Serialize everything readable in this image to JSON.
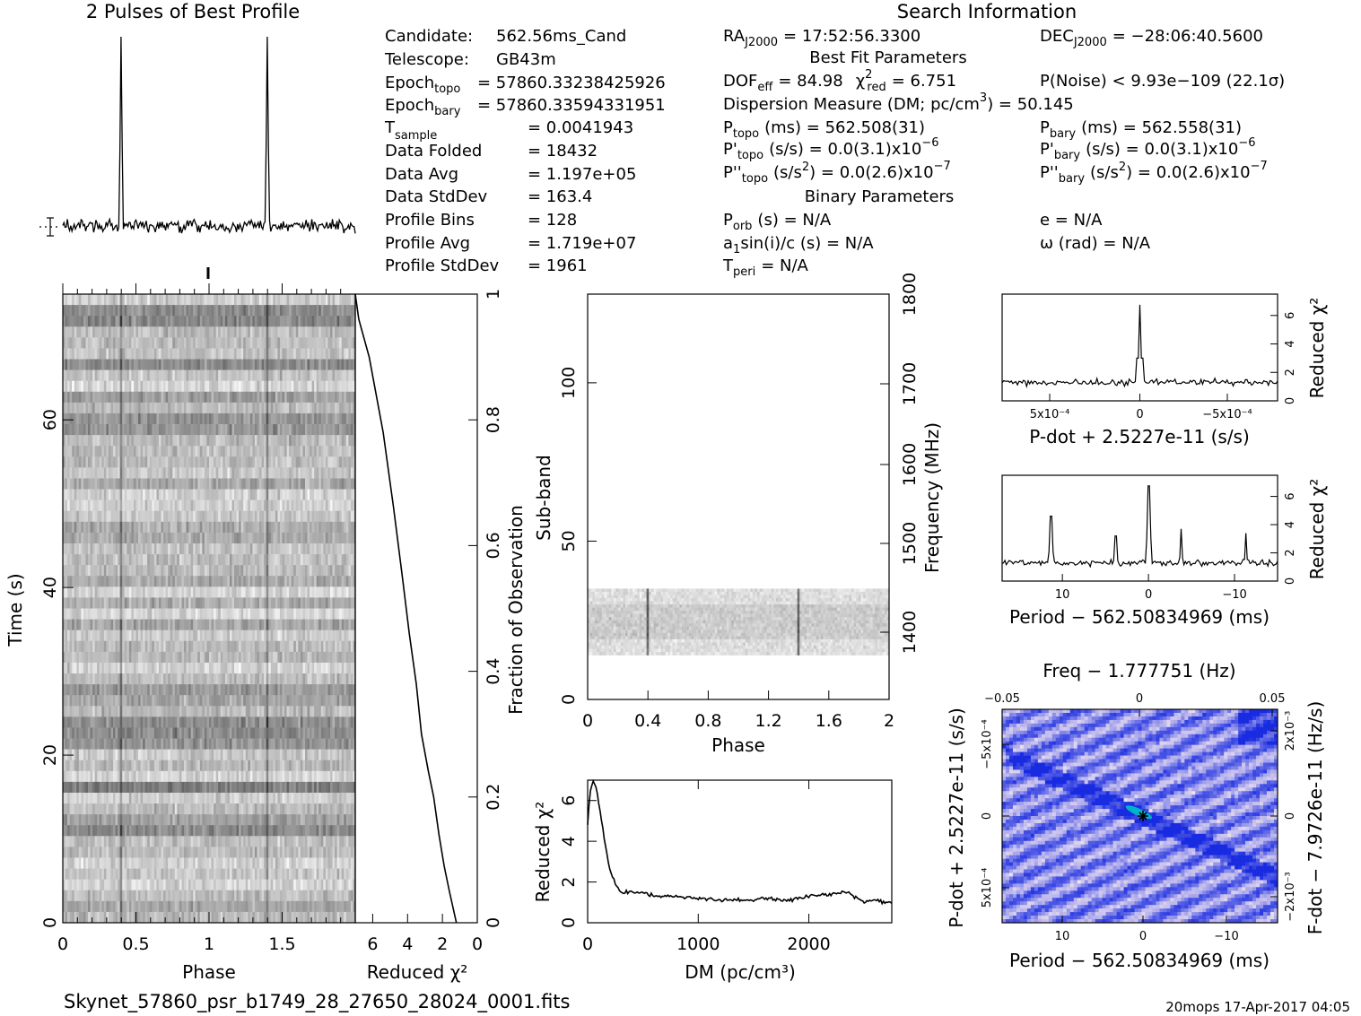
{
  "header": {
    "profile_title": "2 Pulses of Best Profile",
    "search_title": "Search Information"
  },
  "info_left": [
    {
      "label": "Candidate:",
      "value": "562.56ms_Cand"
    },
    {
      "label": "Telescope:",
      "value": "GB43m"
    },
    {
      "label": "Epoch",
      "sub": "topo",
      "value": "= 57860.33238425926"
    },
    {
      "label": "Epoch",
      "sub": "bary",
      "value": "= 57860.33594331951"
    },
    {
      "label": "T",
      "sub": "sample",
      "value": "=   0.0041943"
    },
    {
      "label": "Data Folded",
      "value": "=   18432"
    },
    {
      "label": "Data Avg",
      "value": "=   1.197e+05"
    },
    {
      "label": "Data StdDev",
      "value": "=   163.4"
    },
    {
      "label": "Profile Bins",
      "value": "=   128"
    },
    {
      "label": "Profile Avg",
      "value": "=   1.719e+07"
    },
    {
      "label": "Profile StdDev",
      "value": "=   1961"
    }
  ],
  "search_info": {
    "ra_label": "RA",
    "ra_sub": "J2000",
    "ra_value": "= 17:52:56.3300",
    "dec_label": "DEC",
    "dec_sub": "J2000",
    "dec_value": "= −28:06:40.5600",
    "best_fit_heading": "Best Fit Parameters",
    "dof": "DOF",
    "dof_sub": "eff",
    "dof_value": "= 84.98",
    "chi2": "χ",
    "chi2_sup": "2",
    "chi2_sub": "red",
    "chi2_value": "= 6.751",
    "pnoise": "P(Noise) < 9.93e−109  (22.1σ)",
    "dm_text": "Dispersion Measure (DM; pc/cm",
    "dm_sup": "3",
    "dm_value": ") = 50.145",
    "ptopo": "P",
    "ptopo_sub": "topo",
    "ptopo_value": "(ms)  =   562.508(31)",
    "pbary": "P",
    "pbary_sub": "bary",
    "pbary_value": "(ms)  =   562.558(31)",
    "pdtopo": "P'",
    "pdtopo_sub": "topo",
    "pdtopo_value": "(s/s) = 0.0(3.1)x10",
    "pdtopo_exp": "−6",
    "pdbary": "P'",
    "pdbary_sub": "bary",
    "pdbary_value": "(s/s) = 0.0(3.1)x10",
    "pdbary_exp": "−6",
    "pddtopo": "P''",
    "pddtopo_sub": "topo",
    "pddtopo_value": "(s/s",
    "pddtopo_value2": ") = 0.0(2.6)x10",
    "pddtopo_exp": "−7",
    "pddbary": "P''",
    "pddbary_sub": "bary",
    "pddbary_value": "(s/s",
    "pddbary_value2": ") = 0.0(2.6)x10",
    "pddbary_exp": "−7",
    "sq": "2",
    "binary_heading": "Binary Parameters",
    "porb": "P",
    "porb_sub": "orb",
    "porb_value": "(s) = N/A",
    "asini": "a",
    "asini_sub": "1",
    "asini_value": "sin(i)/c (s) = N/A",
    "tperi": "T",
    "tperi_sub": "peri",
    "tperi_value": "= N/A",
    "ecc": "e = N/A",
    "omega": "ω (rad) = N/A"
  },
  "footer": {
    "filename": "Skynet_57860_psr_b1749_28_27650_28024_0001.fits",
    "stamp": "20mops 17-Apr-2017 04:05"
  },
  "chart_data": [
    {
      "type": "line",
      "name_in_plot": "2 Pulses of Best Profile",
      "description_free": true,
      "x": "phase 0-2 (two rotations)",
      "peaks_at_phase": [
        0.4,
        1.4
      ],
      "title": "2 Pulses of Best Profile"
    },
    {
      "type": "heatmap",
      "xlabel": "Phase",
      "ylabel": "Time (s)",
      "xlim": [
        0,
        2
      ],
      "ylim": [
        0,
        75
      ],
      "xticks": [
        "0",
        "0.5",
        "1",
        "1.5"
      ],
      "yticks": [
        "0",
        "20",
        "40",
        "60"
      ],
      "pulse_phase": [
        0.4,
        1.4
      ],
      "bright_band_time": [
        15,
        17
      ]
    },
    {
      "type": "line",
      "xlabel": "Reduced χ²",
      "ylabel": "Fraction of Observation",
      "xlim": [
        7,
        0
      ],
      "ylim": [
        0,
        1
      ],
      "xticks": [
        "6",
        "4",
        "2",
        "0"
      ],
      "yticks": [
        "0",
        "0.2",
        "0.4",
        "0.6",
        "0.8",
        "1"
      ],
      "x": [
        1.2,
        1.6,
        1.9,
        2.2,
        2.5,
        2.8,
        3.2,
        3.5,
        3.9,
        4.3,
        4.8,
        5.4,
        6.2,
        6.8,
        7.0
      ],
      "y": [
        0.0,
        0.05,
        0.09,
        0.14,
        0.2,
        0.24,
        0.3,
        0.38,
        0.46,
        0.55,
        0.66,
        0.78,
        0.9,
        0.96,
        1.0
      ]
    },
    {
      "type": "heatmap",
      "xlabel": "Phase",
      "ylabel": "Sub-band",
      "y2label": "Frequency (MHz)",
      "xlim": [
        0,
        2
      ],
      "ylim": [
        0,
        128
      ],
      "xticks": [
        "0",
        "0.4",
        "0.8",
        "1.2",
        "1.6",
        "2"
      ],
      "yticks": [
        "0",
        "50",
        "100"
      ],
      "y2ticks": [
        "1400",
        "1500",
        "1600",
        "1700",
        "1800"
      ],
      "band_subbands": [
        14,
        35
      ],
      "pulse_phase": [
        0.4,
        1.4
      ]
    },
    {
      "type": "line",
      "xlabel": "DM (pc/cm³)",
      "ylabel": "Reduced χ²",
      "xlim": [
        0,
        2750
      ],
      "ylim": [
        0,
        7
      ],
      "xticks": [
        "0",
        "1000",
        "2000"
      ],
      "yticks": [
        "0",
        "2",
        "4",
        "6"
      ],
      "x": [
        0,
        20,
        50,
        80,
        120,
        160,
        200,
        250,
        300,
        400,
        500,
        600,
        800,
        1000,
        1200,
        1400,
        1600,
        1800,
        2000,
        2200,
        2350,
        2500,
        2600,
        2750
      ],
      "y": [
        4.8,
        6.3,
        6.9,
        6.6,
        5.2,
        3.8,
        2.6,
        1.9,
        1.5,
        1.5,
        1.5,
        1.3,
        1.3,
        1.2,
        1.1,
        1.1,
        1.2,
        1.1,
        1.3,
        1.4,
        1.5,
        1.0,
        1.1,
        1.0
      ]
    },
    {
      "type": "line",
      "xlabel": "P-dot + 2.5227e-11 (s/s)",
      "ylabel": "Reduced χ²",
      "xlim": [
        0.001,
        -0.001
      ],
      "ylim": [
        0,
        7.5
      ],
      "xticks": [
        "5x10⁻⁴",
        "0",
        "−5x10⁻⁴"
      ],
      "yticks": [
        "0",
        "2",
        "4",
        "6"
      ],
      "peak_at": 0,
      "peak_value": 6.751,
      "baseline": 1.3
    },
    {
      "type": "line",
      "xlabel": "Period − 562.50834969 (ms)",
      "ylabel": "Reduced χ²",
      "xlim": [
        17,
        -15
      ],
      "ylim": [
        0,
        7.5
      ],
      "xticks": [
        "10",
        "0",
        "−10"
      ],
      "yticks": [
        "0",
        "2",
        "4",
        "6"
      ],
      "peaks": [
        {
          "x": 11.3,
          "y": 4.6
        },
        {
          "x": 3.8,
          "y": 3.2
        },
        {
          "x": 0,
          "y": 6.751
        },
        {
          "x": -3.8,
          "y": 3.7
        },
        {
          "x": -11.3,
          "y": 3.4
        }
      ],
      "baseline": 1.3
    },
    {
      "type": "heatmap",
      "title": "Freq − 1.777751 (Hz)",
      "xlabel": "Period − 562.50834969 (ms)",
      "ylabel": "P-dot + 2.5227e-11 (s/s)",
      "y2label": "F-dot − 7.9726e-11 (Hz/s)",
      "xticks": [
        "10",
        "0",
        "−10"
      ],
      "x2ticks": [
        "−0.05",
        "0",
        "0.05"
      ],
      "yticks": [
        "−5x10⁻⁴",
        "0",
        "5x10⁻⁴"
      ],
      "y2ticks": [
        "2x10⁻³",
        "0",
        "−2x10⁻³"
      ],
      "best_point": [
        0,
        0
      ],
      "colors": {
        "low": "#f4e7f0",
        "mid": "#8a8ff0",
        "high": "#1a2bd6",
        "peak": "#00b4c8"
      }
    }
  ]
}
